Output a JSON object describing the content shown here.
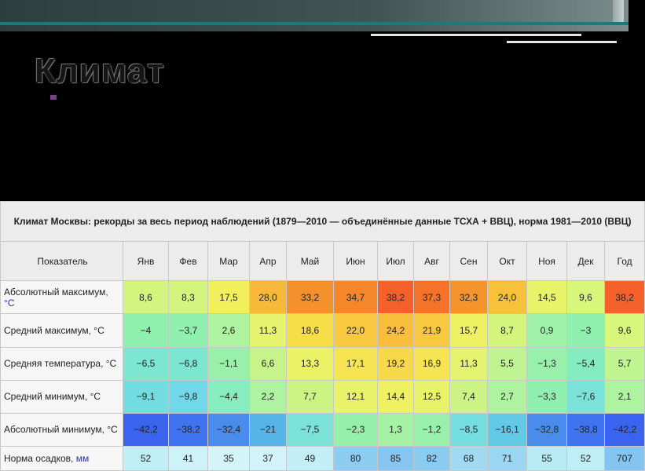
{
  "slide": {
    "title": "Климат"
  },
  "table": {
    "caption": "Климат Москвы: рекорды за весь период наблюдений (1879—2010 — объединённые данные ТСХА + ВВЦ), норма 1981—2010 (ВВЦ)",
    "header_label": "Показатель",
    "months": [
      "Янв",
      "Фев",
      "Мар",
      "Апр",
      "Май",
      "Июн",
      "Июл",
      "Авг",
      "Сен",
      "Окт",
      "Ноя",
      "Дек",
      "Год"
    ],
    "rows": [
      {
        "label": "Абсолютный максимум",
        "unit": ", °C",
        "values": [
          "8,6",
          "8,3",
          "17,5",
          "28,0",
          "33,2",
          "34,7",
          "38,2",
          "37,3",
          "32,3",
          "24,0",
          "14,5",
          "9,6",
          "38,2"
        ],
        "colors": [
          "#d3f57e",
          "#d3f57e",
          "#f1f05c",
          "#f8b83a",
          "#f5912c",
          "#f5862c",
          "#f5612a",
          "#f5722b",
          "#f5932c",
          "#f8c13c",
          "#e8f36a",
          "#d8f57c",
          "#f5612a"
        ]
      },
      {
        "label": "Средний максимум, °C",
        "unit": "",
        "values": [
          "−4",
          "−3,7",
          "2,6",
          "11,3",
          "18,6",
          "22,0",
          "24,2",
          "21,9",
          "15,7",
          "8,7",
          "0,9",
          "−3",
          "9,6"
        ],
        "colors": [
          "#8ff0b0",
          "#8ff0b0",
          "#aef3a0",
          "#e5f46e",
          "#f7de48",
          "#f8c840",
          "#f8be3c",
          "#f8c840",
          "#eef262",
          "#d3f57e",
          "#a0f2a8",
          "#8ff0b0",
          "#d8f57c"
        ]
      },
      {
        "label": "Средняя температура, °C",
        "unit": "",
        "values": [
          "−6,5",
          "−6,8",
          "−1,1",
          "6,6",
          "13,3",
          "17,1",
          "19,2",
          "16,9",
          "11,3",
          "5,5",
          "−1,3",
          "−5,4",
          "5,7"
        ],
        "colors": [
          "#7de6d0",
          "#7de6d0",
          "#98f0aa",
          "#c6f48a",
          "#eaf366",
          "#f6e452",
          "#f7d848",
          "#f6e452",
          "#e5f46e",
          "#bff490",
          "#98f0aa",
          "#84ecc0",
          "#bff490"
        ]
      },
      {
        "label": "Средний минимум, °C",
        "unit": "",
        "values": [
          "−9,1",
          "−9,8",
          "−4,4",
          "2,2",
          "7,7",
          "12,1",
          "14,4",
          "12,5",
          "7,4",
          "2,7",
          "−3,3",
          "−7,6",
          "2,1"
        ],
        "colors": [
          "#72dde0",
          "#70d8e8",
          "#86eebe",
          "#aef3a0",
          "#cbf484",
          "#e8f36a",
          "#eef262",
          "#e8f36a",
          "#cbf484",
          "#aef3a0",
          "#8ff0b0",
          "#7ae2d8",
          "#aef3a0"
        ]
      },
      {
        "label": "Абсолютный минимум, °C",
        "unit": "",
        "values": [
          "−42,2",
          "−38,2",
          "−32,4",
          "−21",
          "−7,5",
          "−2,3",
          "1,3",
          "−1,2",
          "−8,5",
          "−16,1",
          "−32,8",
          "−38,8",
          "−42,2"
        ],
        "colors": [
          "#3a63f0",
          "#3f73ef",
          "#4a8cec",
          "#56b4e8",
          "#7ae2d8",
          "#95f0ac",
          "#a6f2a4",
          "#98f0aa",
          "#74dee0",
          "#62cae6",
          "#4a8cec",
          "#3f73ef",
          "#3a63f0"
        ]
      },
      {
        "label": "Норма осадков,",
        "unit": " мм",
        "values": [
          "52",
          "41",
          "35",
          "37",
          "49",
          "80",
          "85",
          "82",
          "68",
          "71",
          "55",
          "52",
          "707"
        ],
        "colors": [
          "#bfeef7",
          "#cdf2f8",
          "#d4f4f9",
          "#d2f3f9",
          "#c2eff7",
          "#8ecdf2",
          "#86c6f0",
          "#8acbf1",
          "#a2daf3",
          "#9cd6f2",
          "#b8ebf6",
          "#bfeef7",
          "#84c4f0"
        ]
      }
    ]
  }
}
